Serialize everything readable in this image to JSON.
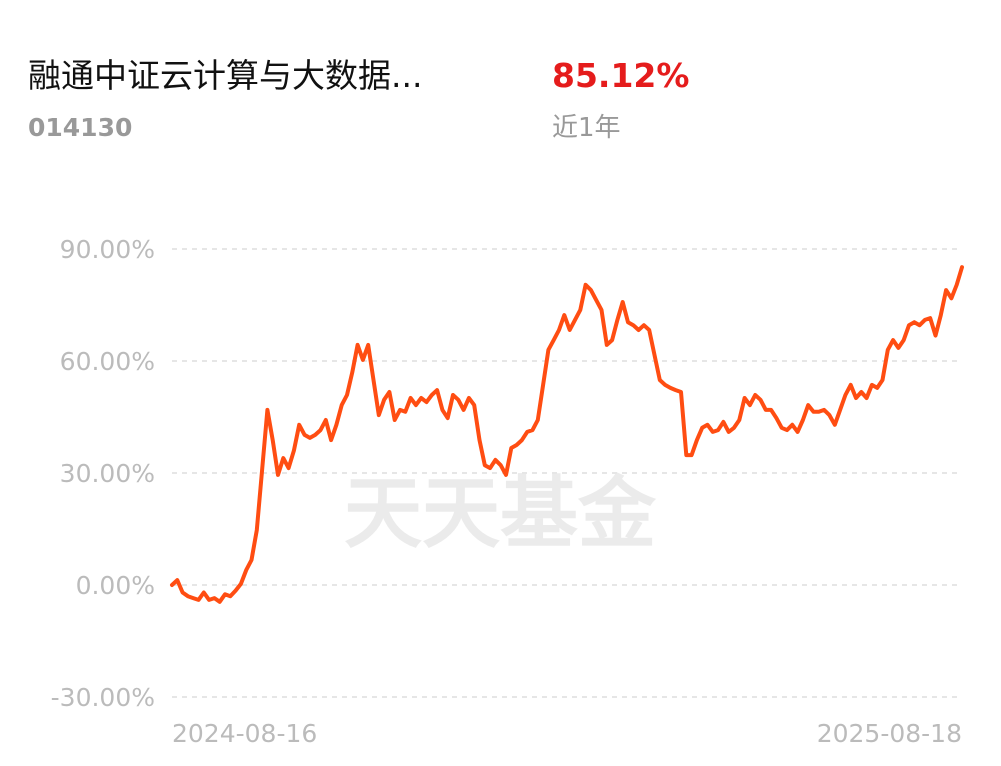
{
  "fund": {
    "title": "融通中证云计算与大数据...",
    "code": "014130",
    "return": "85.12%",
    "period": "近1年"
  },
  "chart_data": {
    "type": "line",
    "watermark": "天天基金",
    "categories": [
      "2024-08-16",
      null,
      null,
      null,
      null,
      null,
      null,
      null,
      null,
      null,
      null,
      null,
      null,
      null,
      null,
      null,
      null,
      null,
      null,
      null,
      null,
      null,
      null,
      null,
      null,
      null,
      null,
      null,
      null,
      null,
      null,
      null,
      null,
      null,
      null,
      null,
      null,
      null,
      null,
      null,
      null,
      null,
      null,
      null,
      null,
      null,
      null,
      null,
      null,
      null,
      null,
      null,
      null,
      null,
      null,
      null,
      null,
      null,
      null,
      null,
      null,
      null,
      null,
      null,
      null,
      null,
      null,
      null,
      null,
      null,
      null,
      null,
      null,
      null,
      null,
      null,
      null,
      null,
      null,
      null,
      null,
      null,
      null,
      null,
      null,
      null,
      null,
      null,
      null,
      null,
      null,
      null,
      null,
      null,
      null,
      null,
      null,
      null,
      null,
      null,
      null,
      null,
      null,
      null,
      null,
      null,
      null,
      null,
      null,
      null,
      null,
      null,
      null,
      null,
      null,
      null,
      null,
      null,
      null,
      null,
      null,
      null,
      null,
      null,
      null,
      null,
      null,
      null,
      null,
      null,
      null,
      null,
      null,
      null,
      null,
      null,
      null,
      null,
      null,
      null,
      null,
      null,
      null,
      null,
      null,
      null,
      null,
      null,
      null,
      "2025-08-18"
    ],
    "series": [
      {
        "color": "#ff4d12",
        "values": [
          0,
          1.3,
          -2,
          -3,
          -3.5,
          -4,
          -2,
          -4,
          -3.5,
          -4.5,
          -2.5,
          -3,
          -1.5,
          0.3,
          4,
          6.7,
          14.7,
          30.8,
          46.9,
          38.8,
          29.5,
          34,
          31.3,
          36,
          42.9,
          40.2,
          39.4,
          40.2,
          41.5,
          44.2,
          38.8,
          42.9,
          48.2,
          50.9,
          57,
          64.3,
          60.3,
          64.3,
          54.9,
          45.5,
          49.6,
          51.7,
          44.2,
          46.9,
          46.4,
          50.1,
          48.2,
          50.1,
          49,
          50.9,
          52.2,
          46.9,
          44.7,
          50.9,
          49.6,
          46.9,
          50.1,
          48.2,
          38.8,
          32.1,
          31.3,
          33.5,
          32.1,
          29.5,
          36.7,
          37.5,
          38.8,
          41,
          41.5,
          44.2,
          53.6,
          63,
          65.6,
          68.3,
          72.3,
          68.3,
          71,
          73.7,
          80.4,
          79,
          76.3,
          73.7,
          64.3,
          65.6,
          71,
          75.8,
          70.4,
          69.6,
          68.3,
          69.6,
          68.3,
          61.6,
          54.9,
          53.6,
          52.8,
          52.2,
          51.7,
          34.8,
          34.8,
          38.8,
          42.1,
          42.9,
          41,
          41.5,
          43.7,
          41,
          42.1,
          44.2,
          50.1,
          48.2,
          50.9,
          49.6,
          46.9,
          46.9,
          44.7,
          42.1,
          41.5,
          42.9,
          41,
          44.2,
          48.2,
          46.4,
          46.4,
          46.9,
          45.5,
          42.9,
          46.9,
          50.9,
          53.6,
          50.1,
          51.7,
          50.1,
          53.6,
          52.8,
          54.9,
          63,
          65.6,
          63.5,
          65.6,
          69.6,
          70.4,
          69.6,
          71,
          71.5,
          66.8,
          72.3,
          79,
          76.8,
          80.4,
          85.12
        ]
      }
    ],
    "ylim": [
      -30,
      90
    ],
    "yticks": [
      {
        "value": -30,
        "label": "-30.00%"
      },
      {
        "value": 0,
        "label": "0.00%"
      },
      {
        "value": 30,
        "label": "30.00%"
      },
      {
        "value": 60,
        "label": "60.00%"
      },
      {
        "value": 90,
        "label": "90.00%"
      }
    ],
    "grid": true
  }
}
